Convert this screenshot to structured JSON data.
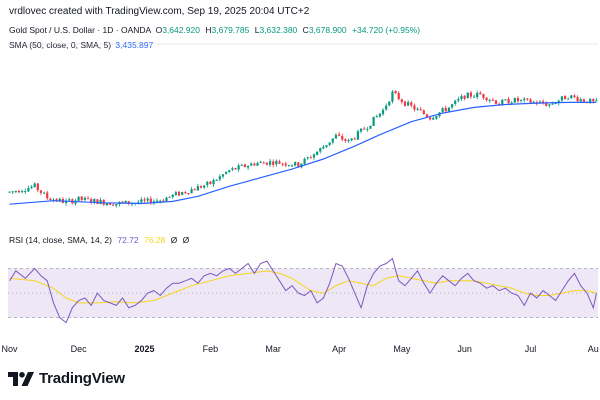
{
  "header": {
    "text": "vrdlovec created with TradingView.com, Sep 19, 2025 20:04 UTC+2"
  },
  "legend": {
    "title": "Gold Spot / U.S. Dollar · 1D · OANDA",
    "open_key": "O",
    "open": "3,642.920",
    "high_key": "H",
    "high": "3,679.785",
    "low_key": "L",
    "low": "3,632.380",
    "close_key": "C",
    "close": "3,678.900",
    "change": "+34.720 (+0.95%)"
  },
  "sma": {
    "label": "SMA (50, close, 0, SMA, 5)",
    "value": "3,435.897"
  },
  "rsi": {
    "label": "RSI (14, close, SMA, 14, 2)",
    "value": "72.72",
    "ma_value": "76.28",
    "na1": "Ø",
    "na2": "Ø"
  },
  "brand": {
    "name": "TradingView",
    "logo_icon": "tradingview-logo-icon"
  },
  "colors": {
    "up": "#089981",
    "down": "#f23645",
    "sma": "#2962ff",
    "rsi": "#7e57c2",
    "rsi_ma": "#f7d51e",
    "rsi_band": "#ede7f6"
  },
  "chart_data": [
    {
      "type": "candlestick",
      "title": "Gold Spot / U.S. Dollar · 1D · OANDA",
      "x_ticks": [
        "Nov",
        "Dec",
        "2025",
        "Feb",
        "Mar",
        "Apr",
        "May",
        "Jun",
        "Jul",
        "Au"
      ],
      "x_tick_positions": [
        0,
        22,
        43,
        64,
        84,
        105,
        125,
        145,
        166,
        186
      ],
      "bar_count": 188,
      "ylim": [
        2550,
        3700
      ],
      "price_series": [
        [
          0,
          2710
        ],
        [
          8,
          2750
        ],
        [
          12,
          2670
        ],
        [
          18,
          2640
        ],
        [
          22,
          2660
        ],
        [
          26,
          2650
        ],
        [
          34,
          2630
        ],
        [
          42,
          2640
        ],
        [
          48,
          2655
        ],
        [
          54,
          2700
        ],
        [
          64,
          2770
        ],
        [
          70,
          2860
        ],
        [
          78,
          2910
        ],
        [
          84,
          2920
        ],
        [
          92,
          2900
        ],
        [
          98,
          2990
        ],
        [
          104,
          3100
        ],
        [
          108,
          3060
        ],
        [
          114,
          3170
        ],
        [
          119,
          3280
        ],
        [
          122,
          3400
        ],
        [
          126,
          3330
        ],
        [
          134,
          3230
        ],
        [
          140,
          3300
        ],
        [
          145,
          3380
        ],
        [
          150,
          3390
        ],
        [
          156,
          3330
        ],
        [
          160,
          3350
        ],
        [
          166,
          3340
        ],
        [
          172,
          3320
        ],
        [
          178,
          3380
        ],
        [
          183,
          3350
        ],
        [
          187,
          3330
        ]
      ],
      "sma_series": [
        [
          0,
          2625
        ],
        [
          14,
          2650
        ],
        [
          30,
          2635
        ],
        [
          42,
          2630
        ],
        [
          52,
          2645
        ],
        [
          60,
          2680
        ],
        [
          70,
          2750
        ],
        [
          80,
          2810
        ],
        [
          90,
          2870
        ],
        [
          100,
          2940
        ],
        [
          110,
          3030
        ],
        [
          118,
          3110
        ],
        [
          128,
          3200
        ],
        [
          138,
          3260
        ],
        [
          148,
          3300
        ],
        [
          158,
          3320
        ],
        [
          168,
          3330
        ],
        [
          178,
          3335
        ],
        [
          187,
          3335
        ]
      ]
    },
    {
      "type": "line",
      "title": "RSI (14, close, SMA, 14, 2)",
      "ylim": [
        20,
        85
      ],
      "bands": [
        30,
        50,
        70
      ],
      "rsi_series": [
        [
          0,
          60
        ],
        [
          2,
          68
        ],
        [
          5,
          62
        ],
        [
          8,
          70
        ],
        [
          10,
          64
        ],
        [
          12,
          60
        ],
        [
          14,
          42
        ],
        [
          16,
          30
        ],
        [
          18,
          26
        ],
        [
          20,
          38
        ],
        [
          22,
          44
        ],
        [
          24,
          46
        ],
        [
          26,
          40
        ],
        [
          28,
          50
        ],
        [
          30,
          44
        ],
        [
          32,
          42
        ],
        [
          34,
          40
        ],
        [
          36,
          46
        ],
        [
          38,
          38
        ],
        [
          40,
          40
        ],
        [
          42,
          44
        ],
        [
          44,
          50
        ],
        [
          46,
          52
        ],
        [
          48,
          48
        ],
        [
          50,
          54
        ],
        [
          52,
          58
        ],
        [
          54,
          58
        ],
        [
          56,
          60
        ],
        [
          58,
          62
        ],
        [
          60,
          58
        ],
        [
          62,
          64
        ],
        [
          64,
          66
        ],
        [
          66,
          64
        ],
        [
          68,
          68
        ],
        [
          70,
          70
        ],
        [
          72,
          66
        ],
        [
          74,
          70
        ],
        [
          76,
          74
        ],
        [
          78,
          66
        ],
        [
          80,
          74
        ],
        [
          82,
          76
        ],
        [
          84,
          68
        ],
        [
          86,
          60
        ],
        [
          88,
          52
        ],
        [
          90,
          56
        ],
        [
          92,
          50
        ],
        [
          94,
          48
        ],
        [
          96,
          52
        ],
        [
          98,
          42
        ],
        [
          100,
          46
        ],
        [
          102,
          58
        ],
        [
          104,
          74
        ],
        [
          106,
          72
        ],
        [
          108,
          62
        ],
        [
          110,
          50
        ],
        [
          112,
          38
        ],
        [
          114,
          56
        ],
        [
          116,
          66
        ],
        [
          118,
          72
        ],
        [
          120,
          74
        ],
        [
          122,
          78
        ],
        [
          124,
          60
        ],
        [
          126,
          56
        ],
        [
          128,
          62
        ],
        [
          130,
          68
        ],
        [
          132,
          58
        ],
        [
          134,
          50
        ],
        [
          136,
          58
        ],
        [
          138,
          64
        ],
        [
          140,
          60
        ],
        [
          142,
          56
        ],
        [
          144,
          62
        ],
        [
          146,
          66
        ],
        [
          148,
          60
        ],
        [
          150,
          58
        ],
        [
          152,
          54
        ],
        [
          154,
          56
        ],
        [
          156,
          52
        ],
        [
          158,
          54
        ],
        [
          160,
          50
        ],
        [
          162,
          48
        ],
        [
          164,
          40
        ],
        [
          166,
          50
        ],
        [
          168,
          46
        ],
        [
          170,
          52
        ],
        [
          172,
          48
        ],
        [
          174,
          44
        ],
        [
          176,
          52
        ],
        [
          178,
          60
        ],
        [
          180,
          66
        ],
        [
          182,
          56
        ],
        [
          184,
          50
        ],
        [
          186,
          38
        ],
        [
          187,
          50
        ]
      ],
      "rsi_ma_series": [
        [
          0,
          62
        ],
        [
          8,
          60
        ],
        [
          14,
          54
        ],
        [
          18,
          46
        ],
        [
          22,
          42
        ],
        [
          28,
          42
        ],
        [
          34,
          43
        ],
        [
          40,
          42
        ],
        [
          46,
          44
        ],
        [
          52,
          50
        ],
        [
          58,
          56
        ],
        [
          64,
          60
        ],
        [
          70,
          64
        ],
        [
          76,
          66
        ],
        [
          82,
          68
        ],
        [
          86,
          66
        ],
        [
          90,
          62
        ],
        [
          96,
          52
        ],
        [
          100,
          50
        ],
        [
          104,
          56
        ],
        [
          108,
          60
        ],
        [
          112,
          58
        ],
        [
          116,
          56
        ],
        [
          120,
          62
        ],
        [
          124,
          64
        ],
        [
          128,
          62
        ],
        [
          132,
          60
        ],
        [
          136,
          58
        ],
        [
          140,
          60
        ],
        [
          144,
          60
        ],
        [
          148,
          60
        ],
        [
          152,
          58
        ],
        [
          156,
          56
        ],
        [
          160,
          54
        ],
        [
          164,
          50
        ],
        [
          168,
          48
        ],
        [
          172,
          48
        ],
        [
          176,
          50
        ],
        [
          180,
          52
        ],
        [
          184,
          52
        ],
        [
          187,
          50
        ]
      ]
    }
  ]
}
